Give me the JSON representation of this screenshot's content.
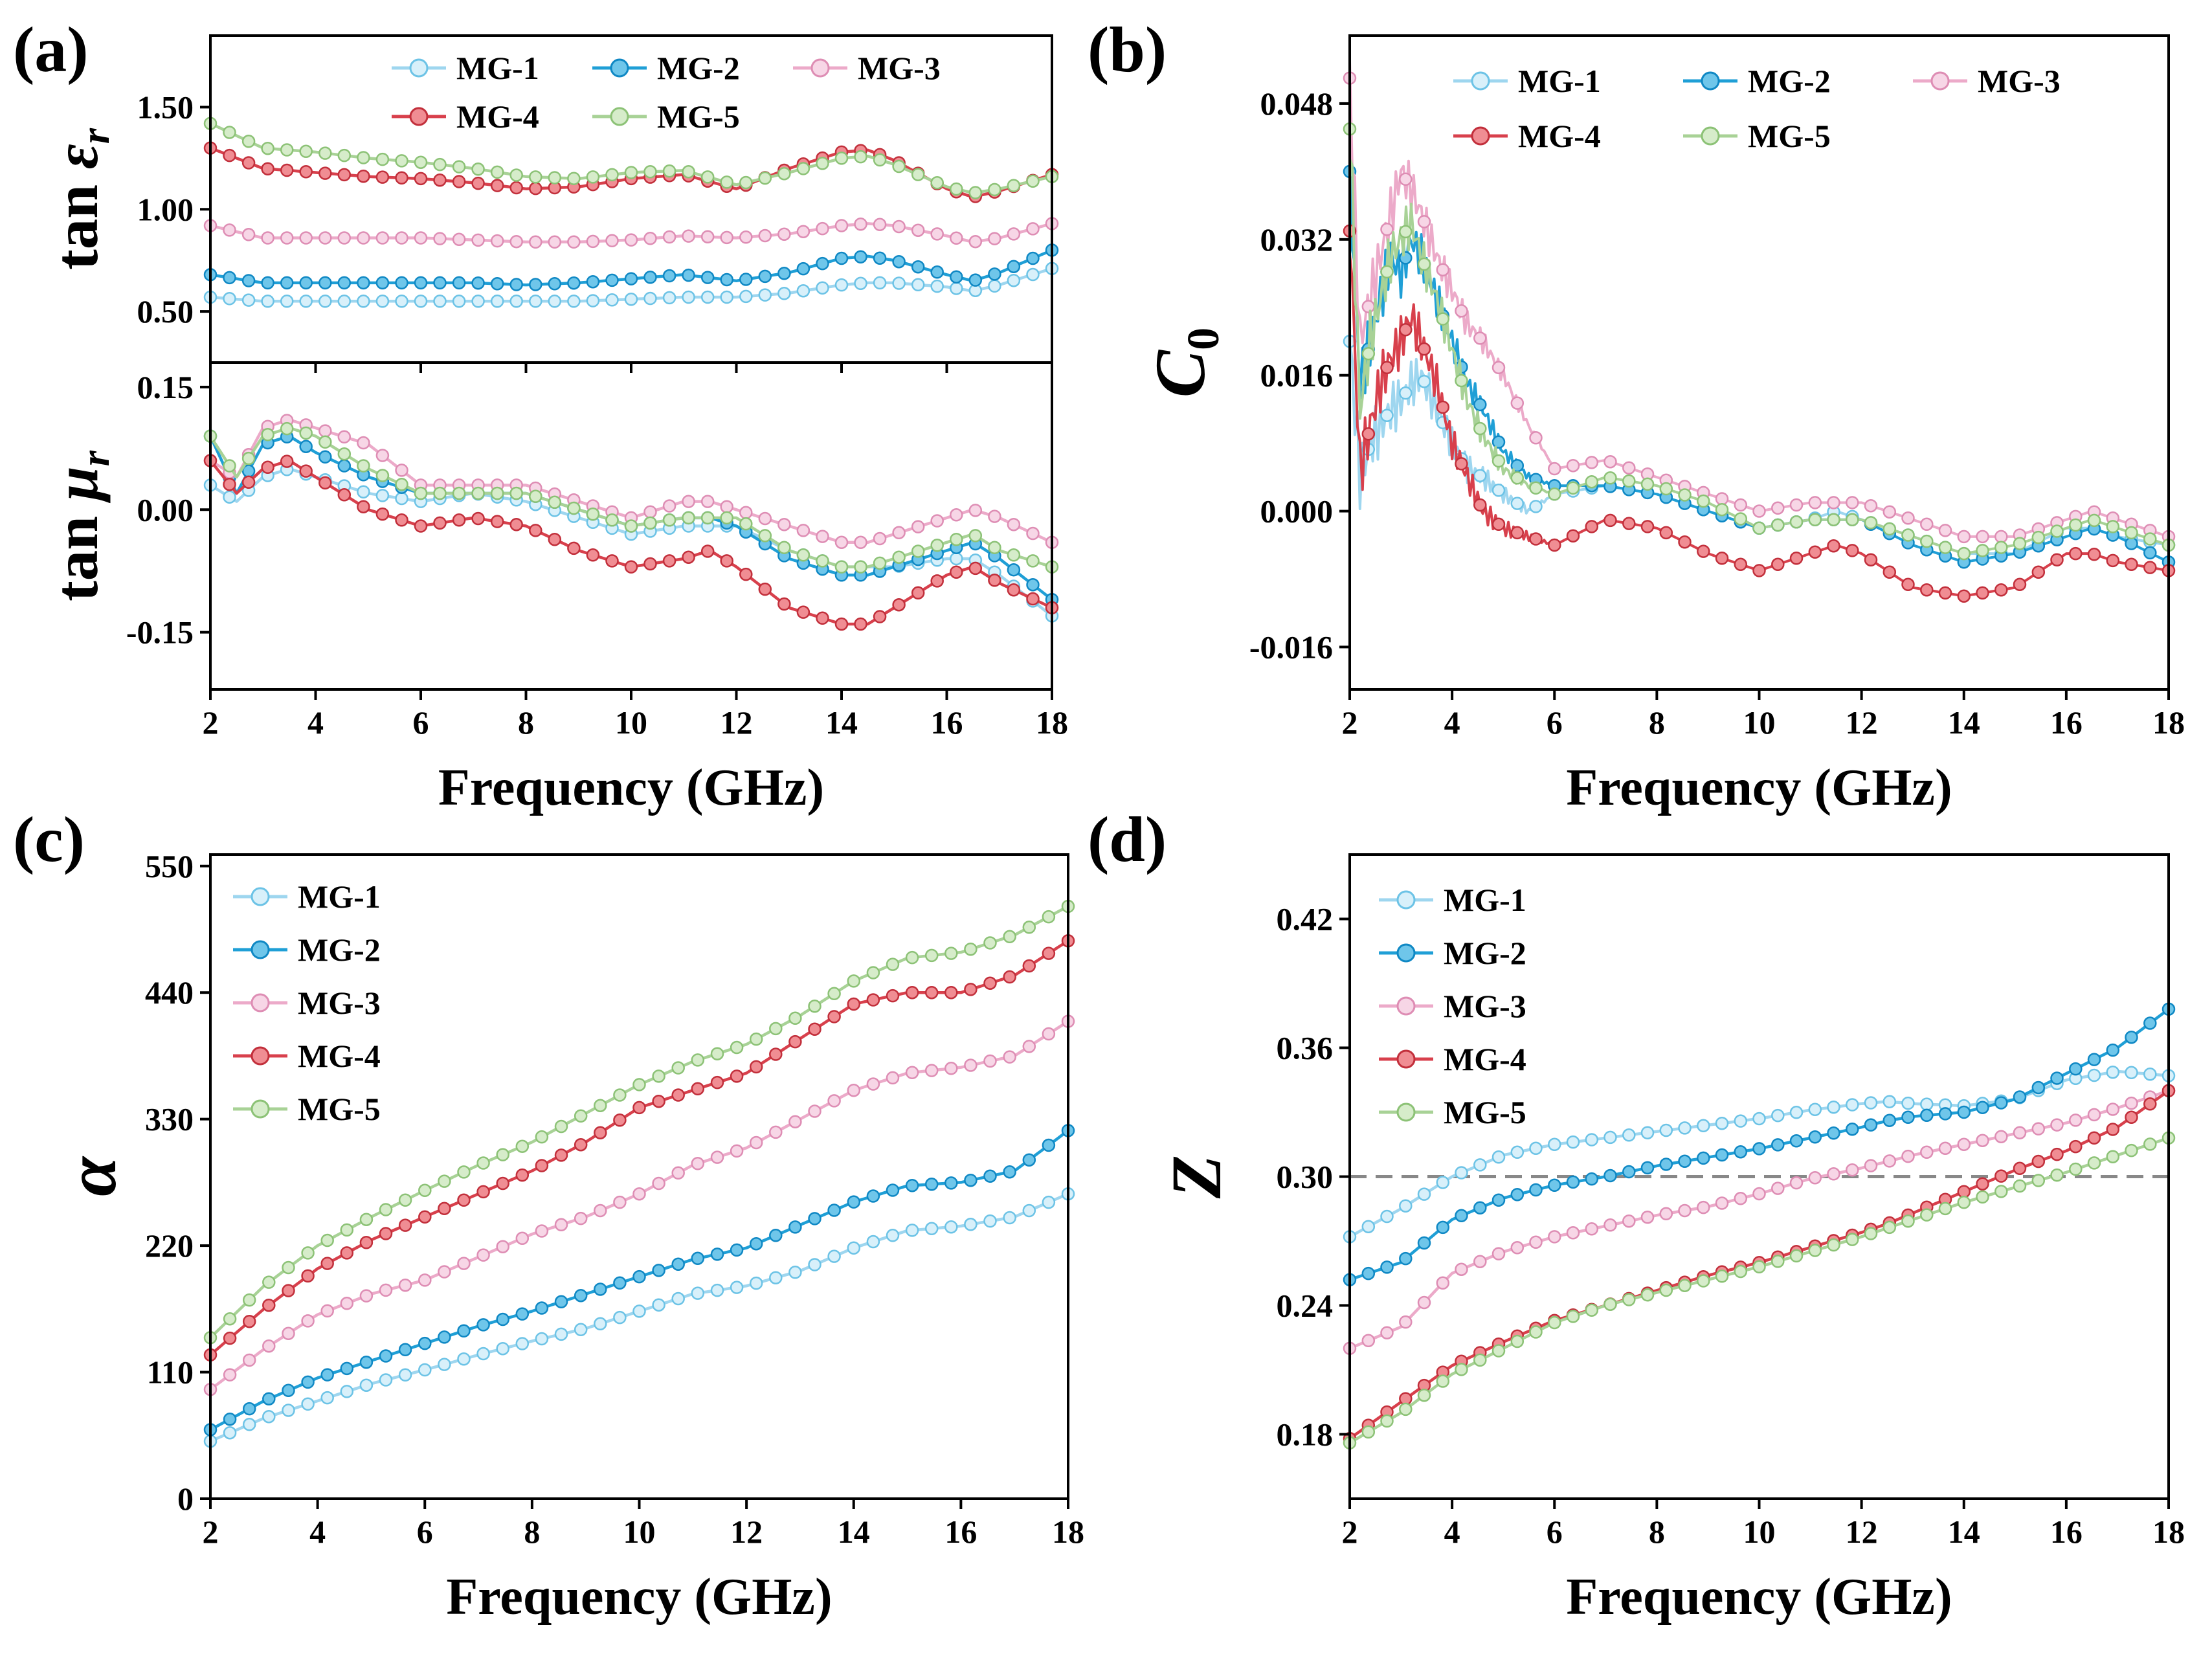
{
  "figure": {
    "panels": [
      "(a)",
      "(b)",
      "(c)",
      "(d)"
    ]
  },
  "chart_data": [
    {
      "panel": "(a)",
      "type": "line",
      "subplots": [
        {
          "ylabel": "tan εr",
          "ylabel_main": "tan ",
          "ylabel_sym": "ε",
          "ylabel_sub": "r",
          "ylim": [
            0.25,
            1.85
          ],
          "yticks": [
            0.5,
            1.0,
            1.5
          ],
          "ytick_labels": [
            "0.50",
            "1.00",
            "1.50"
          ],
          "x": [
            2,
            3,
            4,
            5,
            6,
            7,
            8,
            9,
            10,
            11,
            12,
            13,
            14,
            14.5,
            15,
            16,
            16.5,
            17,
            18
          ],
          "series": [
            {
              "name": "MG-1",
              "values": [
                0.57,
                0.55,
                0.55,
                0.55,
                0.55,
                0.55,
                0.55,
                0.55,
                0.56,
                0.57,
                0.57,
                0.59,
                0.63,
                0.64,
                0.64,
                0.62,
                0.6,
                0.63,
                0.71
              ]
            },
            {
              "name": "MG-2",
              "values": [
                0.68,
                0.64,
                0.64,
                0.64,
                0.64,
                0.64,
                0.63,
                0.64,
                0.66,
                0.68,
                0.65,
                0.69,
                0.76,
                0.77,
                0.75,
                0.68,
                0.65,
                0.69,
                0.8
              ]
            },
            {
              "name": "MG-3",
              "values": [
                0.92,
                0.86,
                0.86,
                0.86,
                0.86,
                0.85,
                0.84,
                0.84,
                0.85,
                0.87,
                0.86,
                0.88,
                0.92,
                0.93,
                0.92,
                0.87,
                0.84,
                0.86,
                0.93
              ]
            },
            {
              "name": "MG-4",
              "values": [
                1.3,
                1.2,
                1.18,
                1.16,
                1.15,
                1.13,
                1.1,
                1.11,
                1.15,
                1.17,
                1.1,
                1.2,
                1.28,
                1.29,
                1.24,
                1.1,
                1.06,
                1.09,
                1.17
              ]
            },
            {
              "name": "MG-5",
              "values": [
                1.42,
                1.3,
                1.28,
                1.25,
                1.23,
                1.2,
                1.16,
                1.15,
                1.18,
                1.19,
                1.12,
                1.18,
                1.25,
                1.26,
                1.22,
                1.11,
                1.08,
                1.1,
                1.16
              ]
            }
          ]
        },
        {
          "ylabel": "tan μr",
          "ylabel_main": "tan ",
          "ylabel_sym": "μ",
          "ylabel_sub": "r",
          "ylim": [
            -0.22,
            0.18
          ],
          "yticks": [
            -0.15,
            0.0,
            0.15
          ],
          "ytick_labels": [
            "-0.15",
            "0.00",
            "0.15"
          ],
          "x": [
            2,
            2.5,
            3,
            3.5,
            4,
            5,
            6,
            7,
            8,
            9,
            10,
            11,
            11.5,
            12,
            13,
            14,
            14.5,
            15,
            16,
            16.5,
            17,
            18
          ],
          "series": [
            {
              "name": "MG-1",
              "values": [
                0.03,
                0.01,
                0.04,
                0.05,
                0.04,
                0.02,
                0.01,
                0.02,
                0.01,
                -0.01,
                -0.03,
                -0.02,
                -0.02,
                -0.02,
                -0.05,
                -0.07,
                -0.07,
                -0.07,
                -0.06,
                -0.06,
                -0.08,
                -0.13
              ]
            },
            {
              "name": "MG-2",
              "values": [
                0.09,
                0.02,
                0.08,
                0.09,
                0.07,
                0.04,
                0.02,
                0.02,
                0.02,
                0.0,
                -0.02,
                -0.01,
                -0.01,
                -0.02,
                -0.06,
                -0.08,
                -0.08,
                -0.07,
                -0.05,
                -0.04,
                -0.06,
                -0.11
              ]
            },
            {
              "name": "MG-3",
              "values": [
                0.06,
                0.04,
                0.1,
                0.11,
                0.1,
                0.08,
                0.03,
                0.03,
                0.03,
                0.01,
                -0.01,
                0.01,
                0.01,
                0.0,
                -0.02,
                -0.04,
                -0.04,
                -0.03,
                -0.01,
                0.0,
                -0.01,
                -0.04
              ]
            },
            {
              "name": "MG-4",
              "values": [
                0.06,
                0.02,
                0.05,
                0.06,
                0.04,
                0.0,
                -0.02,
                -0.01,
                -0.02,
                -0.05,
                -0.07,
                -0.06,
                -0.05,
                -0.07,
                -0.12,
                -0.14,
                -0.14,
                -0.12,
                -0.08,
                -0.07,
                -0.09,
                -0.12
              ]
            },
            {
              "name": "MG-5",
              "values": [
                0.09,
                0.04,
                0.09,
                0.1,
                0.09,
                0.05,
                0.02,
                0.02,
                0.02,
                0.0,
                -0.02,
                -0.01,
                -0.01,
                -0.01,
                -0.05,
                -0.07,
                -0.07,
                -0.06,
                -0.04,
                -0.03,
                -0.05,
                -0.07
              ]
            }
          ]
        }
      ],
      "xlabel": "Frequency (GHz)",
      "xlim": [
        2,
        18
      ],
      "xticks": [
        2,
        4,
        6,
        8,
        10,
        12,
        14,
        16,
        18
      ],
      "legend": {
        "entries": [
          "MG-1",
          "MG-2",
          "MG-3",
          "MG-4",
          "MG-5"
        ],
        "placement": "top-right",
        "columns": 3
      }
    },
    {
      "panel": "(b)",
      "type": "line",
      "ylabel": "C0",
      "ylabel_main": "C",
      "ylabel_sub": "0",
      "xlabel": "Frequency (GHz)",
      "xlim": [
        2,
        18
      ],
      "xticks": [
        2,
        4,
        6,
        8,
        10,
        12,
        14,
        16,
        18
      ],
      "ylim": [
        -0.021,
        0.056
      ],
      "yticks": [
        -0.016,
        0.0,
        0.016,
        0.032,
        0.048
      ],
      "ytick_labels": [
        "-0.016",
        "0.000",
        "0.016",
        "0.032",
        "0.048"
      ],
      "x": [
        2,
        2.2,
        2.4,
        2.6,
        2.8,
        3,
        3.2,
        3.4,
        3.7,
        4,
        4.3,
        4.6,
        5,
        5.5,
        6,
        7,
        8,
        9,
        10,
        11,
        11.5,
        12,
        13,
        14,
        15,
        16,
        16.5,
        17,
        18
      ],
      "series": [
        {
          "name": "MG-1",
          "values": [
            0.02,
            0.004,
            0.008,
            0.01,
            0.012,
            0.013,
            0.015,
            0.016,
            0.012,
            0.008,
            0.005,
            0.004,
            0.002,
            0.0,
            0.002,
            0.003,
            0.002,
            0.0,
            -0.002,
            -0.001,
            0.0,
            -0.001,
            -0.003,
            -0.005,
            -0.005,
            -0.002,
            -0.002,
            -0.003,
            -0.004
          ]
        },
        {
          "name": "MG-2",
          "values": [
            0.04,
            0.015,
            0.02,
            0.025,
            0.03,
            0.028,
            0.032,
            0.03,
            0.025,
            0.02,
            0.015,
            0.012,
            0.007,
            0.004,
            0.003,
            0.003,
            0.002,
            0.0,
            -0.002,
            -0.001,
            -0.001,
            -0.001,
            -0.004,
            -0.006,
            -0.005,
            -0.003,
            -0.002,
            -0.003,
            -0.006
          ]
        },
        {
          "name": "MG-3",
          "values": [
            0.051,
            0.02,
            0.025,
            0.03,
            0.035,
            0.04,
            0.038,
            0.035,
            0.03,
            0.026,
            0.022,
            0.02,
            0.016,
            0.01,
            0.005,
            0.006,
            0.004,
            0.002,
            0.0,
            0.001,
            0.001,
            0.001,
            -0.001,
            -0.003,
            -0.003,
            -0.001,
            0.0,
            -0.001,
            -0.003
          ]
        },
        {
          "name": "MG-4",
          "values": [
            0.033,
            0.005,
            0.01,
            0.015,
            0.018,
            0.02,
            0.023,
            0.02,
            0.015,
            0.008,
            0.004,
            0.0,
            -0.002,
            -0.003,
            -0.004,
            -0.001,
            -0.002,
            -0.005,
            -0.007,
            -0.005,
            -0.004,
            -0.005,
            -0.009,
            -0.01,
            -0.009,
            -0.005,
            -0.005,
            -0.006,
            -0.007
          ]
        },
        {
          "name": "MG-5",
          "values": [
            0.045,
            0.012,
            0.02,
            0.025,
            0.03,
            0.032,
            0.034,
            0.03,
            0.025,
            0.019,
            0.013,
            0.009,
            0.005,
            0.003,
            0.002,
            0.004,
            0.003,
            0.001,
            -0.002,
            -0.001,
            -0.001,
            -0.001,
            -0.003,
            -0.005,
            -0.004,
            -0.002,
            -0.001,
            -0.002,
            -0.004
          ]
        }
      ],
      "legend": {
        "entries": [
          "MG-1",
          "MG-2",
          "MG-3",
          "MG-4",
          "MG-5"
        ],
        "placement": "top-right",
        "columns": 3
      }
    },
    {
      "panel": "(c)",
      "type": "line",
      "ylabel": "α",
      "xlabel": "Frequency (GHz)",
      "xlim": [
        2,
        18
      ],
      "xticks": [
        2,
        4,
        6,
        8,
        10,
        12,
        14,
        16,
        18
      ],
      "ylim": [
        0,
        560
      ],
      "yticks": [
        0,
        110,
        220,
        330,
        440,
        550
      ],
      "ytick_labels": [
        "0",
        "110",
        "220",
        "330",
        "440",
        "550"
      ],
      "x": [
        2,
        3,
        4,
        5,
        6,
        7,
        8,
        9,
        10,
        11,
        12,
        13,
        14,
        15,
        16,
        17,
        18
      ],
      "series": [
        {
          "name": "MG-1",
          "values": [
            50,
            70,
            85,
            100,
            112,
            125,
            137,
            148,
            163,
            178,
            185,
            198,
            218,
            233,
            237,
            245,
            265
          ]
        },
        {
          "name": "MG-2",
          "values": [
            60,
            85,
            105,
            120,
            135,
            150,
            163,
            178,
            193,
            208,
            218,
            238,
            258,
            272,
            275,
            285,
            320
          ]
        },
        {
          "name": "MG-3",
          "values": [
            95,
            130,
            160,
            178,
            190,
            210,
            230,
            245,
            265,
            290,
            305,
            330,
            355,
            370,
            375,
            385,
            415
          ]
        },
        {
          "name": "MG-4",
          "values": [
            125,
            165,
            200,
            225,
            245,
            265,
            285,
            310,
            340,
            355,
            370,
            400,
            430,
            440,
            440,
            455,
            485
          ]
        },
        {
          "name": "MG-5",
          "values": [
            140,
            185,
            220,
            245,
            268,
            290,
            310,
            335,
            360,
            380,
            395,
            420,
            450,
            470,
            475,
            490,
            515
          ]
        }
      ],
      "legend": {
        "entries": [
          "MG-1",
          "MG-2",
          "MG-3",
          "MG-4",
          "MG-5"
        ],
        "placement": "top-left",
        "columns": 1
      }
    },
    {
      "panel": "(d)",
      "type": "line",
      "ylabel": "Z",
      "xlabel": "Frequency (GHz)",
      "xlim": [
        2,
        18
      ],
      "xticks": [
        2,
        4,
        6,
        8,
        10,
        12,
        14,
        16,
        18
      ],
      "ylim": [
        0.15,
        0.45
      ],
      "yticks": [
        0.18,
        0.24,
        0.3,
        0.36,
        0.42
      ],
      "ytick_labels": [
        "0.18",
        "0.24",
        "0.30",
        "0.36",
        "0.42"
      ],
      "reference_line": 0.3,
      "x": [
        2,
        3,
        4,
        5,
        6,
        7,
        8,
        9,
        10,
        11,
        12,
        12.5,
        13,
        14,
        15,
        16,
        17,
        18
      ],
      "series": [
        {
          "name": "MG-1",
          "values": [
            0.272,
            0.285,
            0.3,
            0.31,
            0.315,
            0.318,
            0.321,
            0.324,
            0.327,
            0.331,
            0.334,
            0.335,
            0.334,
            0.333,
            0.336,
            0.345,
            0.349,
            0.347
          ]
        },
        {
          "name": "MG-2",
          "values": [
            0.252,
            0.26,
            0.28,
            0.29,
            0.296,
            0.3,
            0.305,
            0.309,
            0.313,
            0.318,
            0.323,
            0.326,
            0.328,
            0.33,
            0.336,
            0.348,
            0.36,
            0.378
          ]
        },
        {
          "name": "MG-3",
          "values": [
            0.22,
            0.23,
            0.255,
            0.265,
            0.272,
            0.277,
            0.282,
            0.286,
            0.292,
            0.299,
            0.304,
            0.307,
            0.31,
            0.315,
            0.32,
            0.325,
            0.332,
            0.34
          ]
        },
        {
          "name": "MG-4",
          "values": [
            0.178,
            0.195,
            0.212,
            0.223,
            0.233,
            0.24,
            0.247,
            0.254,
            0.26,
            0.267,
            0.274,
            0.278,
            0.283,
            0.293,
            0.303,
            0.312,
            0.323,
            0.34
          ]
        },
        {
          "name": "MG-5",
          "values": [
            0.176,
            0.19,
            0.208,
            0.22,
            0.232,
            0.24,
            0.246,
            0.252,
            0.258,
            0.265,
            0.272,
            0.276,
            0.28,
            0.288,
            0.295,
            0.302,
            0.31,
            0.318
          ]
        }
      ],
      "legend": {
        "entries": [
          "MG-1",
          "MG-2",
          "MG-3",
          "MG-4",
          "MG-5"
        ],
        "placement": "top-left",
        "columns": 1
      }
    }
  ],
  "series_colors": {
    "MG-1": {
      "line": "#9ed6ef",
      "marker_edge": "#6cc3e6",
      "marker_fill": "#d8f0fa"
    },
    "MG-2": {
      "line": "#1f9fd6",
      "marker_edge": "#0f88c4",
      "marker_fill": "#6fc6ea"
    },
    "MG-3": {
      "line": "#ecaac9",
      "marker_edge": "#de8db4",
      "marker_fill": "#f7d6e6"
    },
    "MG-4": {
      "line": "#d8404c",
      "marker_edge": "#c22f3b",
      "marker_fill": "#f08d93"
    },
    "MG-5": {
      "line": "#a8d296",
      "marker_edge": "#8cc276",
      "marker_fill": "#d6ecca"
    }
  }
}
